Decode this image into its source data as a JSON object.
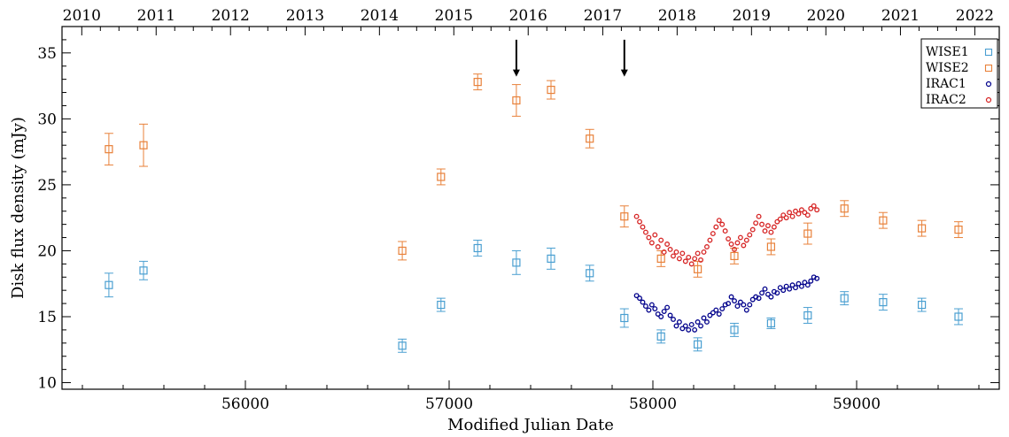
{
  "chart_data": {
    "type": "scatter",
    "title": "",
    "xlabel": "Modified Julian Date",
    "ylabel": "Disk flux density (mJy)",
    "xlim": [
      55100,
      59700
    ],
    "ylim": [
      9.5,
      37
    ],
    "x_ticks": [
      56000,
      57000,
      58000,
      59000
    ],
    "x_tick_labels": [
      "56000",
      "57000",
      "58000",
      "59000"
    ],
    "y_ticks": [
      10,
      15,
      20,
      25,
      30,
      35
    ],
    "y_tick_labels": [
      "10",
      "15",
      "20",
      "25",
      "30",
      "35"
    ],
    "top_axis": {
      "label": "",
      "years": [
        "2010",
        "2011",
        "2012",
        "2013",
        "2014",
        "2015",
        "2016",
        "2017",
        "2018",
        "2019",
        "2020",
        "2021",
        "2022"
      ],
      "year_mjd": [
        55197,
        55562,
        55927,
        56293,
        56658,
        57023,
        57388,
        57754,
        58119,
        58484,
        58849,
        59215,
        59580
      ]
    },
    "arrows": [
      {
        "x": 57330,
        "y_from": 36,
        "y_to": 33.2
      },
      {
        "x": 57860,
        "y_from": 36,
        "y_to": 33.2
      }
    ],
    "legend_position": "top-right",
    "series": [
      {
        "name": "WISE1",
        "marker": "square",
        "color": "#4a9fd1",
        "x": [
          55330,
          55500,
          56770,
          56960,
          57140,
          57330,
          57500,
          57690,
          57860,
          58040,
          58220,
          58400,
          58580,
          58760,
          58940,
          59130,
          59320,
          59500
        ],
        "y": [
          17.4,
          18.5,
          12.8,
          15.9,
          20.2,
          19.1,
          19.4,
          18.3,
          14.9,
          13.5,
          12.9,
          14.0,
          14.5,
          15.1,
          16.4,
          16.1,
          15.9,
          15.0
        ],
        "err": [
          0.9,
          0.7,
          0.5,
          0.5,
          0.6,
          0.9,
          0.8,
          0.6,
          0.7,
          0.5,
          0.5,
          0.5,
          0.4,
          0.6,
          0.5,
          0.6,
          0.5,
          0.6
        ]
      },
      {
        "name": "WISE2",
        "marker": "square",
        "color": "#e8813a",
        "x": [
          55330,
          55500,
          56770,
          56960,
          57140,
          57330,
          57500,
          57690,
          57860,
          58040,
          58220,
          58400,
          58580,
          58760,
          58940,
          59130,
          59320,
          59500
        ],
        "y": [
          27.7,
          28.0,
          20.0,
          25.6,
          32.8,
          31.4,
          32.2,
          28.5,
          22.6,
          19.4,
          18.6,
          19.6,
          20.3,
          21.3,
          23.2,
          22.3,
          21.7,
          21.6
        ],
        "err": [
          1.2,
          1.6,
          0.7,
          0.6,
          0.6,
          1.2,
          0.7,
          0.7,
          0.8,
          0.6,
          0.6,
          0.6,
          0.6,
          0.8,
          0.6,
          0.6,
          0.6,
          0.6
        ]
      },
      {
        "name": "IRAC1",
        "marker": "circle",
        "color": "#00008b",
        "x": [
          57920,
          57935,
          57950,
          57965,
          57980,
          57995,
          58010,
          58025,
          58040,
          58055,
          58070,
          58085,
          58100,
          58115,
          58130,
          58145,
          58160,
          58175,
          58190,
          58205,
          58220,
          58235,
          58250,
          58265,
          58280,
          58295,
          58310,
          58325,
          58340,
          58355,
          58370,
          58385,
          58400,
          58415,
          58430,
          58445,
          58460,
          58475,
          58490,
          58505,
          58520,
          58535,
          58550,
          58565,
          58580,
          58595,
          58610,
          58625,
          58640,
          58655,
          58670,
          58685,
          58700,
          58715,
          58730,
          58745,
          58760,
          58775,
          58790,
          58805
        ],
        "y": [
          16.6,
          16.4,
          16.1,
          15.8,
          15.5,
          15.9,
          15.6,
          15.2,
          15.0,
          15.4,
          15.7,
          15.1,
          14.8,
          14.3,
          14.6,
          14.1,
          14.3,
          14.0,
          14.4,
          14.0,
          14.6,
          14.3,
          14.9,
          14.6,
          15.1,
          15.3,
          15.5,
          15.2,
          15.6,
          15.9,
          16.0,
          16.5,
          16.2,
          15.8,
          16.1,
          15.9,
          15.5,
          15.9,
          16.3,
          16.5,
          16.4,
          16.8,
          17.1,
          16.7,
          16.5,
          16.9,
          16.8,
          17.2,
          17.0,
          17.3,
          17.1,
          17.4,
          17.2,
          17.5,
          17.3,
          17.6,
          17.4,
          17.7,
          18.0,
          17.9
        ]
      },
      {
        "name": "IRAC2",
        "marker": "circle",
        "color": "#d62424",
        "x": [
          57920,
          57935,
          57950,
          57965,
          57980,
          57995,
          58010,
          58025,
          58040,
          58055,
          58070,
          58085,
          58100,
          58115,
          58130,
          58145,
          58160,
          58175,
          58190,
          58205,
          58220,
          58235,
          58250,
          58265,
          58280,
          58295,
          58310,
          58325,
          58340,
          58355,
          58370,
          58385,
          58400,
          58415,
          58430,
          58445,
          58460,
          58475,
          58490,
          58505,
          58520,
          58535,
          58550,
          58565,
          58580,
          58595,
          58610,
          58625,
          58640,
          58655,
          58670,
          58685,
          58700,
          58715,
          58730,
          58745,
          58760,
          58775,
          58790,
          58805
        ],
        "y": [
          22.6,
          22.2,
          21.8,
          21.4,
          21.0,
          20.6,
          21.2,
          20.3,
          20.8,
          19.9,
          20.5,
          20.1,
          19.6,
          19.9,
          19.4,
          19.8,
          19.2,
          19.5,
          19.0,
          19.4,
          19.8,
          19.3,
          19.9,
          20.3,
          20.8,
          21.3,
          21.8,
          22.3,
          22.0,
          21.5,
          20.9,
          20.5,
          20.1,
          20.6,
          21.0,
          20.4,
          20.8,
          21.2,
          21.6,
          22.1,
          22.6,
          22.0,
          21.5,
          21.9,
          21.4,
          21.8,
          22.2,
          22.4,
          22.7,
          22.5,
          22.9,
          22.6,
          23.0,
          22.8,
          23.1,
          22.9,
          22.7,
          23.2,
          23.4,
          23.1
        ]
      }
    ]
  }
}
